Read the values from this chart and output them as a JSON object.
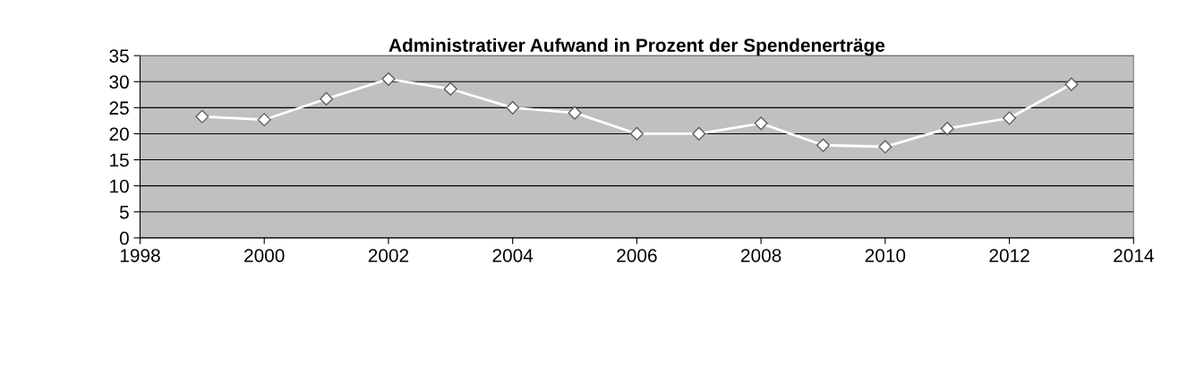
{
  "chart_data": {
    "type": "line",
    "title": "Administrativer Aufwand in Prozent der Spendenerträge",
    "x": [
      1999,
      2000,
      2001,
      2002,
      2003,
      2004,
      2005,
      2006,
      2007,
      2008,
      2009,
      2010,
      2011,
      2012,
      2013
    ],
    "series": [
      {
        "color": "#ffffff",
        "values": [
          23.3,
          22.7,
          26.7,
          30.5,
          28.6,
          25.0,
          24.0,
          20.0,
          20.0,
          22.0,
          17.8,
          17.5,
          21.0,
          23.0,
          29.5
        ]
      }
    ],
    "xlim": [
      1998,
      2014
    ],
    "xticks": [
      1998,
      2000,
      2002,
      2004,
      2006,
      2008,
      2010,
      2012,
      2014
    ],
    "ylim": [
      0,
      35
    ],
    "yticks": [
      0,
      5,
      10,
      15,
      20,
      25,
      30,
      35
    ],
    "grid": "y",
    "marker": "diamond",
    "line_style": "solid",
    "legend": false
  }
}
